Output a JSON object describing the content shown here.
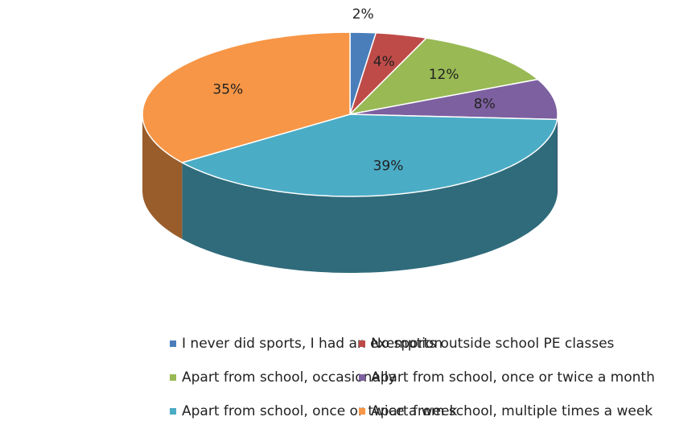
{
  "chart_data": {
    "type": "pie",
    "categories": [
      "I never did sports, I had an exemption",
      "No sports outside school PE classes",
      "Apart from school, occasionally",
      "Apart from school, once or twice a month",
      "Apart from school, once or twice a week",
      "Apart from school, multiple times a week"
    ],
    "values": [
      2,
      4,
      12,
      8,
      39,
      35
    ],
    "value_labels": [
      "2%",
      "4%",
      "12%",
      "8%",
      "39%",
      "35%"
    ],
    "colors": [
      "#4a7ebb",
      "#be4b48",
      "#98b954",
      "#7d60a0",
      "#4bacc6",
      "#f79646"
    ],
    "legend": "bottom"
  }
}
